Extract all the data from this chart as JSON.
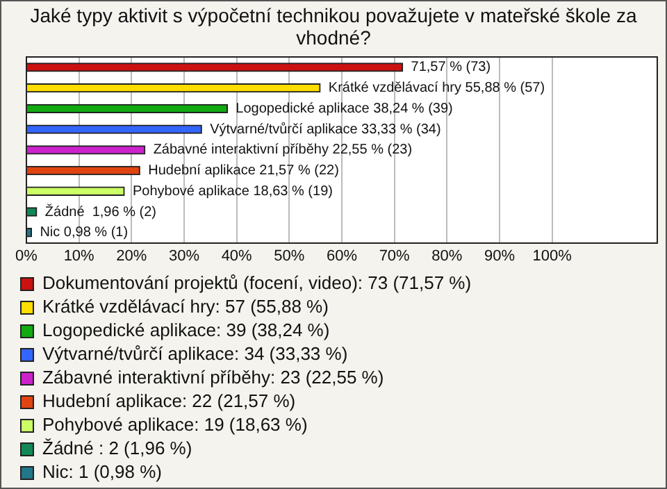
{
  "chart_data": {
    "type": "bar",
    "orientation": "horizontal",
    "title": "Jaké typy aktivit s výpočetní technikou považujete v mateřské škole za vhodné?",
    "categories": [
      null,
      null,
      null,
      null,
      null,
      null,
      null,
      null,
      null
    ],
    "series": [
      {
        "name": "Dokumentování projektů (focení, video): 73 (71,57 %)",
        "color": "#cc1111",
        "values": [
          71.57,
          null,
          null,
          null,
          null,
          null,
          null,
          null,
          null
        ],
        "value_labels": [
          "71,57 % (73)",
          null,
          null,
          null,
          null,
          null,
          null,
          null,
          null
        ]
      },
      {
        "name": "Krátké vzdělávací hry: 57 (55,88 %)",
        "color": "#ffdd00",
        "values": [
          null,
          55.88,
          null,
          null,
          null,
          null,
          null,
          null,
          null
        ],
        "value_labels": [
          null,
          "Krátké vzdělávací hry 55,88 % (57)",
          null,
          null,
          null,
          null,
          null,
          null,
          null
        ]
      },
      {
        "name": "Logopedické aplikace: 39 (38,24 %)",
        "color": "#11aa11",
        "values": [
          null,
          null,
          38.24,
          null,
          null,
          null,
          null,
          null,
          null
        ],
        "value_labels": [
          null,
          null,
          "Logopedické aplikace 38,24 % (39)",
          null,
          null,
          null,
          null,
          null,
          null
        ]
      },
      {
        "name": "Výtvarné/tvůrčí aplikace: 34 (33,33 %)",
        "color": "#3366ff",
        "values": [
          null,
          null,
          null,
          33.33,
          null,
          null,
          null,
          null,
          null
        ],
        "value_labels": [
          null,
          null,
          null,
          "Výtvarné/tvůrčí aplikace 33,33 % (34)",
          null,
          null,
          null,
          null,
          null
        ]
      },
      {
        "name": "Zábavné interaktivní příběhy: 23 (22,55 %)",
        "color": "#cc22cc",
        "values": [
          null,
          null,
          null,
          null,
          22.55,
          null,
          null,
          null,
          null
        ],
        "value_labels": [
          null,
          null,
          null,
          null,
          "Zábavné interaktivní příběhy 22,55 % (23)",
          null,
          null,
          null,
          null
        ]
      },
      {
        "name": "Hudební aplikace: 22 (21,57 %)",
        "color": "#e04411",
        "values": [
          null,
          null,
          null,
          null,
          null,
          21.57,
          null,
          null,
          null
        ],
        "value_labels": [
          null,
          null,
          null,
          null,
          null,
          "Hudební aplikace 21,57 % (22)",
          null,
          null,
          null
        ]
      },
      {
        "name": "Pohybové aplikace: 19 (18,63 %)",
        "color": "#ccff66",
        "values": [
          null,
          null,
          null,
          null,
          null,
          null,
          18.63,
          null,
          null
        ],
        "value_labels": [
          null,
          null,
          null,
          null,
          null,
          null,
          "Pohybové aplikace 18,63 % (19)",
          null,
          null
        ]
      },
      {
        "name": "Žádné : 2 (1,96 %)",
        "color": "#118855",
        "values": [
          null,
          null,
          null,
          null,
          null,
          null,
          null,
          1.96,
          null
        ],
        "value_labels": [
          null,
          null,
          null,
          null,
          null,
          null,
          null,
          "Žádné  1,96 % (2)",
          null
        ]
      },
      {
        "name": "Nic: 1 (0,98 %)",
        "color": "#227788",
        "values": [
          null,
          null,
          null,
          null,
          null,
          null,
          null,
          null,
          0.98
        ],
        "value_labels": [
          null,
          null,
          null,
          null,
          null,
          null,
          null,
          null,
          "Nic 0,98 % (1)"
        ]
      }
    ],
    "xlim": [
      0,
      120
    ],
    "xticks": [
      {
        "value": 0,
        "label": "0%"
      },
      {
        "value": 10,
        "label": "10%"
      },
      {
        "value": 20,
        "label": "20%"
      },
      {
        "value": 30,
        "label": "30%"
      },
      {
        "value": 40,
        "label": "40%"
      },
      {
        "value": 50,
        "label": "50%"
      },
      {
        "value": 60,
        "label": "60%"
      },
      {
        "value": 70,
        "label": "70%"
      },
      {
        "value": 80,
        "label": "80%"
      },
      {
        "value": 90,
        "label": "90%"
      },
      {
        "value": 100,
        "label": "100%"
      }
    ],
    "grid": "x",
    "legend": "bottom",
    "tick_labels": "x"
  }
}
